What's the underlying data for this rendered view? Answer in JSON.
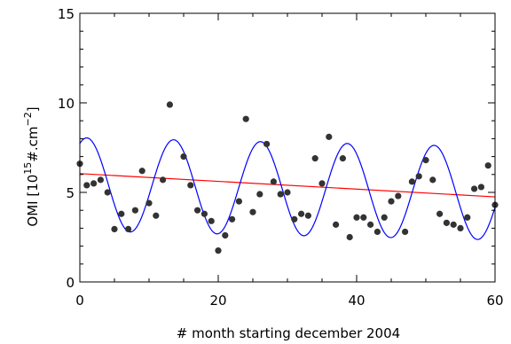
{
  "chart_data": {
    "type": "scatter",
    "title": "",
    "xlabel": "# month starting december 2004",
    "ylabel": {
      "prefix": "OMI [10",
      "sup1": "15",
      "middle": "#.cm",
      "sup2": "−2",
      "suffix": "]"
    },
    "xlim": [
      0,
      60
    ],
    "ylim": [
      0,
      15
    ],
    "xticks": [
      0,
      20,
      40,
      60
    ],
    "yticks": [
      0,
      5,
      10,
      15
    ],
    "grid": false,
    "legend": "none",
    "colors": {
      "points": "#333333",
      "seasonal_fit": "#0000ff",
      "trend_line": "#ff0000",
      "axes": "#000000"
    },
    "points": {
      "x": [
        0,
        1,
        2,
        3,
        4,
        5,
        6,
        7,
        8,
        9,
        10,
        11,
        12,
        13,
        15,
        16,
        17,
        18,
        19,
        20,
        21,
        22,
        23,
        24,
        25,
        26,
        27,
        28,
        29,
        30,
        31,
        32,
        33,
        34,
        35,
        36,
        37,
        38,
        39,
        40,
        41,
        42,
        43,
        44,
        45,
        46,
        47,
        48,
        49,
        50,
        51,
        52,
        53,
        54,
        55,
        56,
        57,
        58,
        59,
        60
      ],
      "y": [
        6.6,
        5.4,
        5.5,
        5.7,
        5.0,
        2.95,
        3.8,
        2.95,
        4.0,
        6.2,
        4.4,
        3.7,
        5.7,
        9.9,
        7.0,
        5.4,
        4.0,
        3.8,
        3.4,
        1.75,
        2.6,
        3.5,
        4.5,
        9.1,
        3.9,
        4.9,
        7.7,
        5.6,
        4.9,
        5.0,
        3.5,
        3.8,
        3.7,
        6.9,
        5.5,
        8.1,
        3.2,
        6.9,
        2.5,
        3.6,
        3.6,
        3.2,
        2.8,
        3.6,
        4.5,
        4.8,
        2.8,
        5.6,
        5.9,
        6.8,
        5.7,
        3.8,
        3.3,
        3.2,
        3.0,
        3.6,
        5.2,
        5.3,
        6.5,
        4.3
      ]
    },
    "series": [
      {
        "kind": "trend",
        "x": [
          0,
          60
        ],
        "y": [
          6.05,
          4.75
        ]
      },
      {
        "kind": "seasonal",
        "offset": 5.45,
        "slope": -0.0083,
        "amplitude": 2.6,
        "period": 12.55,
        "phase": 1.0
      }
    ]
  }
}
